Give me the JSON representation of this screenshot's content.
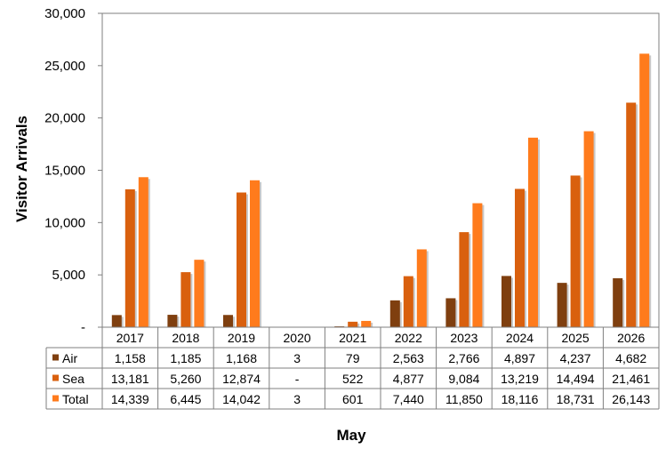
{
  "chart_data": {
    "type": "bar",
    "xlabel": "May",
    "ylabel": "Visitor Arrivals",
    "ylim": [
      0,
      30000
    ],
    "y_ticks": [
      "-",
      "5,000",
      "10,000",
      "15,000",
      "20,000",
      "25,000",
      "30,000"
    ],
    "grid": false,
    "legend": "data-table",
    "categories": [
      "2017",
      "2018",
      "2019",
      "2020",
      "2021",
      "2022",
      "2023",
      "2024",
      "2025",
      "2026"
    ],
    "series": [
      {
        "name": "Air",
        "color": "#7f3f0f",
        "values": [
          1158,
          1185,
          1168,
          3,
          79,
          2563,
          2766,
          4897,
          4237,
          4682
        ],
        "labels": [
          "1,158",
          "1,185",
          "1,168",
          "3",
          "79",
          "2,563",
          "2,766",
          "4,897",
          "4,237",
          "4,682"
        ]
      },
      {
        "name": "Sea",
        "color": "#d9600e",
        "values": [
          13181,
          5260,
          12874,
          0,
          522,
          4877,
          9084,
          13219,
          14494,
          21461
        ],
        "labels": [
          "13,181",
          "5,260",
          "12,874",
          "-",
          "522",
          "4,877",
          "9,084",
          "13,219",
          "14,494",
          "21,461"
        ]
      },
      {
        "name": "Total",
        "color": "#ff7b1c",
        "values": [
          14339,
          6445,
          14042,
          3,
          601,
          7440,
          11850,
          18116,
          18731,
          26143
        ],
        "labels": [
          "14,339",
          "6,445",
          "14,042",
          "3",
          "601",
          "7,440",
          "11,850",
          "18,116",
          "18,731",
          "26,143"
        ]
      }
    ]
  }
}
